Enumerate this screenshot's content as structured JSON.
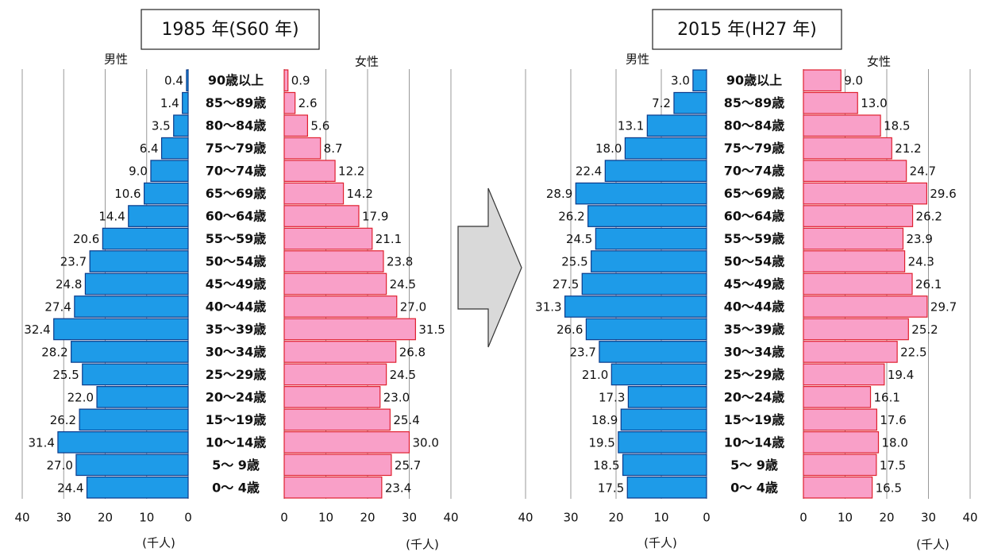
{
  "chart_data": [
    {
      "type": "pyramid",
      "title": "1985 年(S60 年)",
      "categories": [
        "90歳以上",
        "85〜89歳",
        "80〜84歳",
        "75〜79歳",
        "70〜74歳",
        "65〜69歳",
        "60〜64歳",
        "55〜59歳",
        "50〜54歳",
        "45〜49歳",
        "40〜44歳",
        "35〜39歳",
        "30〜34歳",
        "25〜29歳",
        "20〜24歳",
        "15〜19歳",
        "10〜14歳",
        "5〜 9歳",
        "0〜 4歳"
      ],
      "series": [
        {
          "name": "男性",
          "color": "#1e9be8",
          "values": [
            0.4,
            1.4,
            3.5,
            6.4,
            9.0,
            10.6,
            14.4,
            20.6,
            23.7,
            24.8,
            27.4,
            32.4,
            28.2,
            25.5,
            22.0,
            26.2,
            31.4,
            27.0,
            24.4
          ],
          "value_labels": [
            "0.4",
            "1.4",
            "3.5",
            "6.4",
            "9.0",
            "10.6",
            "14.4",
            "20.6",
            "23.7",
            "24.8",
            "27.4",
            "32.4",
            "28.2",
            "25.5",
            "22.0",
            "26.2",
            "31.4",
            "27.0",
            "24.4"
          ]
        },
        {
          "name": "女性",
          "color": "#f9a0c8",
          "values": [
            0.9,
            2.6,
            5.6,
            8.7,
            12.2,
            14.2,
            17.9,
            21.1,
            23.8,
            24.5,
            27.0,
            31.5,
            26.8,
            24.5,
            23.0,
            25.4,
            30.0,
            25.7,
            23.4
          ],
          "value_labels": [
            "0.9",
            "2.6",
            "5.6",
            "8.7",
            "12.2",
            "14.2",
            "17.9",
            "21.1",
            "23.8",
            "24.5",
            "27.0",
            "31.5",
            "26.8",
            "24.5",
            "23.0",
            "25.4",
            "30.0",
            "25.7",
            "23.4"
          ]
        }
      ],
      "xlim": [
        0,
        40
      ],
      "xticks": [
        0,
        10,
        20,
        30,
        40
      ],
      "x_label": "(千人)",
      "grid": true
    },
    {
      "type": "pyramid",
      "title": "2015 年(H27 年)",
      "categories": [
        "90歳以上",
        "85〜89歳",
        "80〜84歳",
        "75〜79歳",
        "70〜74歳",
        "65〜69歳",
        "60〜64歳",
        "55〜59歳",
        "50〜54歳",
        "45〜49歳",
        "40〜44歳",
        "35〜39歳",
        "30〜34歳",
        "25〜29歳",
        "20〜24歳",
        "15〜19歳",
        "10〜14歳",
        "5〜 9歳",
        "0〜 4歳"
      ],
      "series": [
        {
          "name": "男性",
          "color": "#1e9be8",
          "values": [
            3.0,
            7.2,
            13.1,
            18.0,
            22.4,
            28.9,
            26.2,
            24.5,
            25.5,
            27.5,
            31.3,
            26.6,
            23.7,
            21.0,
            17.3,
            18.9,
            19.5,
            18.5,
            17.5
          ],
          "value_labels": [
            "3.0",
            "7.2",
            "13.1",
            "18.0",
            "22.4",
            "28.9",
            "26.2",
            "24.5",
            "25.5",
            "27.5",
            "31.3",
            "26.6",
            "23.7",
            "21.0",
            "17.3",
            "18.9",
            "19.5",
            "18.5",
            "17.5"
          ]
        },
        {
          "name": "女性",
          "color": "#f9a0c8",
          "values": [
            9.0,
            13.0,
            18.5,
            21.2,
            24.7,
            29.6,
            26.2,
            23.9,
            24.3,
            26.1,
            29.7,
            25.2,
            22.5,
            19.4,
            16.1,
            17.6,
            18.0,
            17.5,
            16.5
          ],
          "value_labels": [
            "9.0",
            "13.0",
            "18.5",
            "21.2",
            "24.7",
            "29.6",
            "26.2",
            "23.9",
            "24.3",
            "26.1",
            "29.7",
            "25.2",
            "22.5",
            "19.4",
            "16.1",
            "17.6",
            "18.0",
            "17.5",
            "16.5"
          ]
        }
      ],
      "xlim": [
        0,
        40
      ],
      "xticks": [
        0,
        10,
        20,
        30,
        40
      ],
      "x_label": "(千人)",
      "grid": true
    }
  ]
}
